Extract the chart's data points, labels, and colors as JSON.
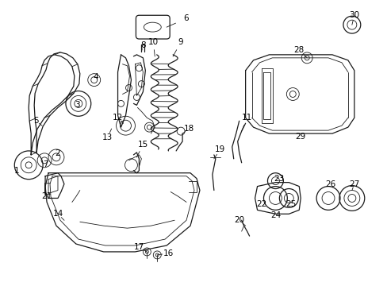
{
  "bg_color": "#ffffff",
  "line_color": "#1a1a1a",
  "text_color": "#000000",
  "fig_width": 4.89,
  "fig_height": 3.6,
  "dpi": 100,
  "font_size": 7.5
}
